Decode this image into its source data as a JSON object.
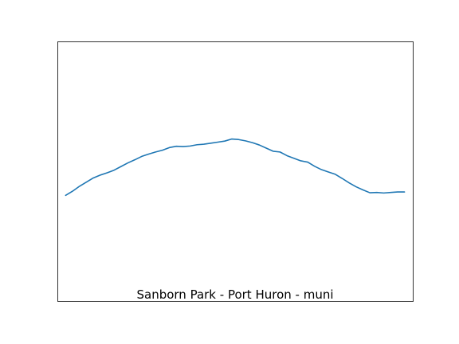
{
  "chart_data": {
    "type": "line",
    "title": "Sanborn Park - Port Huron - muni",
    "xlabel": "",
    "ylabel": "",
    "axes_visible": false,
    "grid": false,
    "legend": "none",
    "xlim": [
      -1.2,
      50.2
    ],
    "ylim": [
      0,
      1
    ],
    "series": [
      {
        "color": "#1f77b4",
        "x": [
          0,
          1,
          2,
          3,
          4,
          5,
          6,
          7,
          8,
          9,
          10,
          11,
          12,
          13,
          14,
          15,
          16,
          17,
          18,
          19,
          20,
          21,
          22,
          23,
          24,
          25,
          26,
          27,
          28,
          29,
          30,
          31,
          32,
          33,
          34,
          35,
          36,
          37,
          38,
          39,
          40,
          41,
          42,
          43,
          44,
          45,
          46,
          47,
          48,
          49
        ],
        "y": [
          0.407,
          0.423,
          0.442,
          0.458,
          0.474,
          0.485,
          0.494,
          0.504,
          0.518,
          0.532,
          0.544,
          0.557,
          0.566,
          0.574,
          0.581,
          0.591,
          0.596,
          0.595,
          0.597,
          0.602,
          0.604,
          0.608,
          0.612,
          0.616,
          0.624,
          0.622,
          0.617,
          0.61,
          0.601,
          0.589,
          0.577,
          0.574,
          0.56,
          0.55,
          0.54,
          0.535,
          0.519,
          0.506,
          0.497,
          0.488,
          0.472,
          0.455,
          0.44,
          0.428,
          0.417,
          0.418,
          0.416,
          0.418,
          0.42,
          0.42
        ]
      }
    ]
  }
}
